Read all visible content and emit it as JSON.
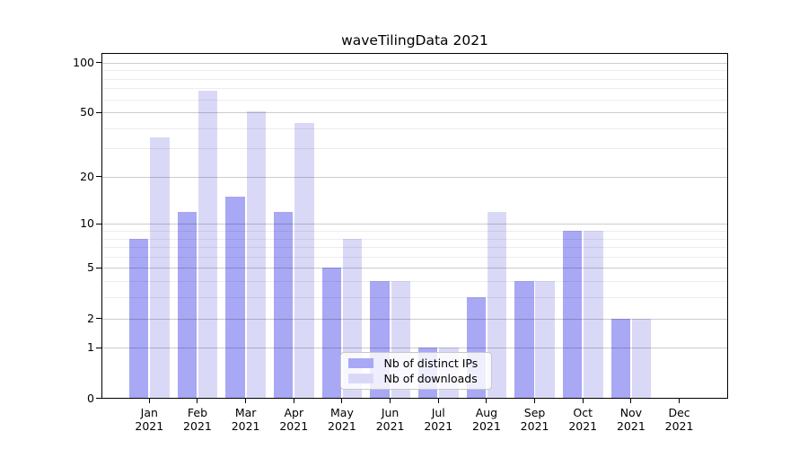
{
  "chart_data": {
    "type": "bar",
    "title": "waveTilingData 2021",
    "categories": [
      "Jan 2021",
      "Feb 2021",
      "Mar 2021",
      "Apr 2021",
      "May 2021",
      "Jun 2021",
      "Jul 2021",
      "Aug 2021",
      "Sep 2021",
      "Oct 2021",
      "Nov 2021",
      "Dec 2021"
    ],
    "series": [
      {
        "name": "Nb of distinct IPs",
        "color": "#a8a8f5",
        "values": [
          8,
          12,
          15,
          12,
          5,
          4,
          1,
          3,
          4,
          9,
          2,
          0
        ]
      },
      {
        "name": "Nb of downloads",
        "color": "#d9d9f7",
        "values": [
          35,
          68,
          51,
          43,
          8,
          4,
          1,
          12,
          4,
          9,
          2,
          0
        ]
      }
    ],
    "xlabel": "",
    "ylabel": "",
    "yscale": "log(1+y)",
    "ylim": [
      0,
      114
    ],
    "y_tick_labels": [
      "100",
      "50",
      "20",
      "10",
      "5",
      "2",
      "1",
      "0"
    ],
    "y_tick_values": [
      100,
      50,
      20,
      10,
      5,
      2,
      1,
      0
    ],
    "minor_gridline_values": [
      3,
      4,
      6,
      7,
      8,
      9,
      30,
      40,
      60,
      70,
      80,
      90
    ],
    "grid": true,
    "legend_position": "inside lower-center",
    "colors": {
      "axis": "#000000",
      "grid_major": "#cacaca",
      "grid_minor": "#ededed",
      "background": "#ffffff",
      "text": "#000000"
    }
  }
}
